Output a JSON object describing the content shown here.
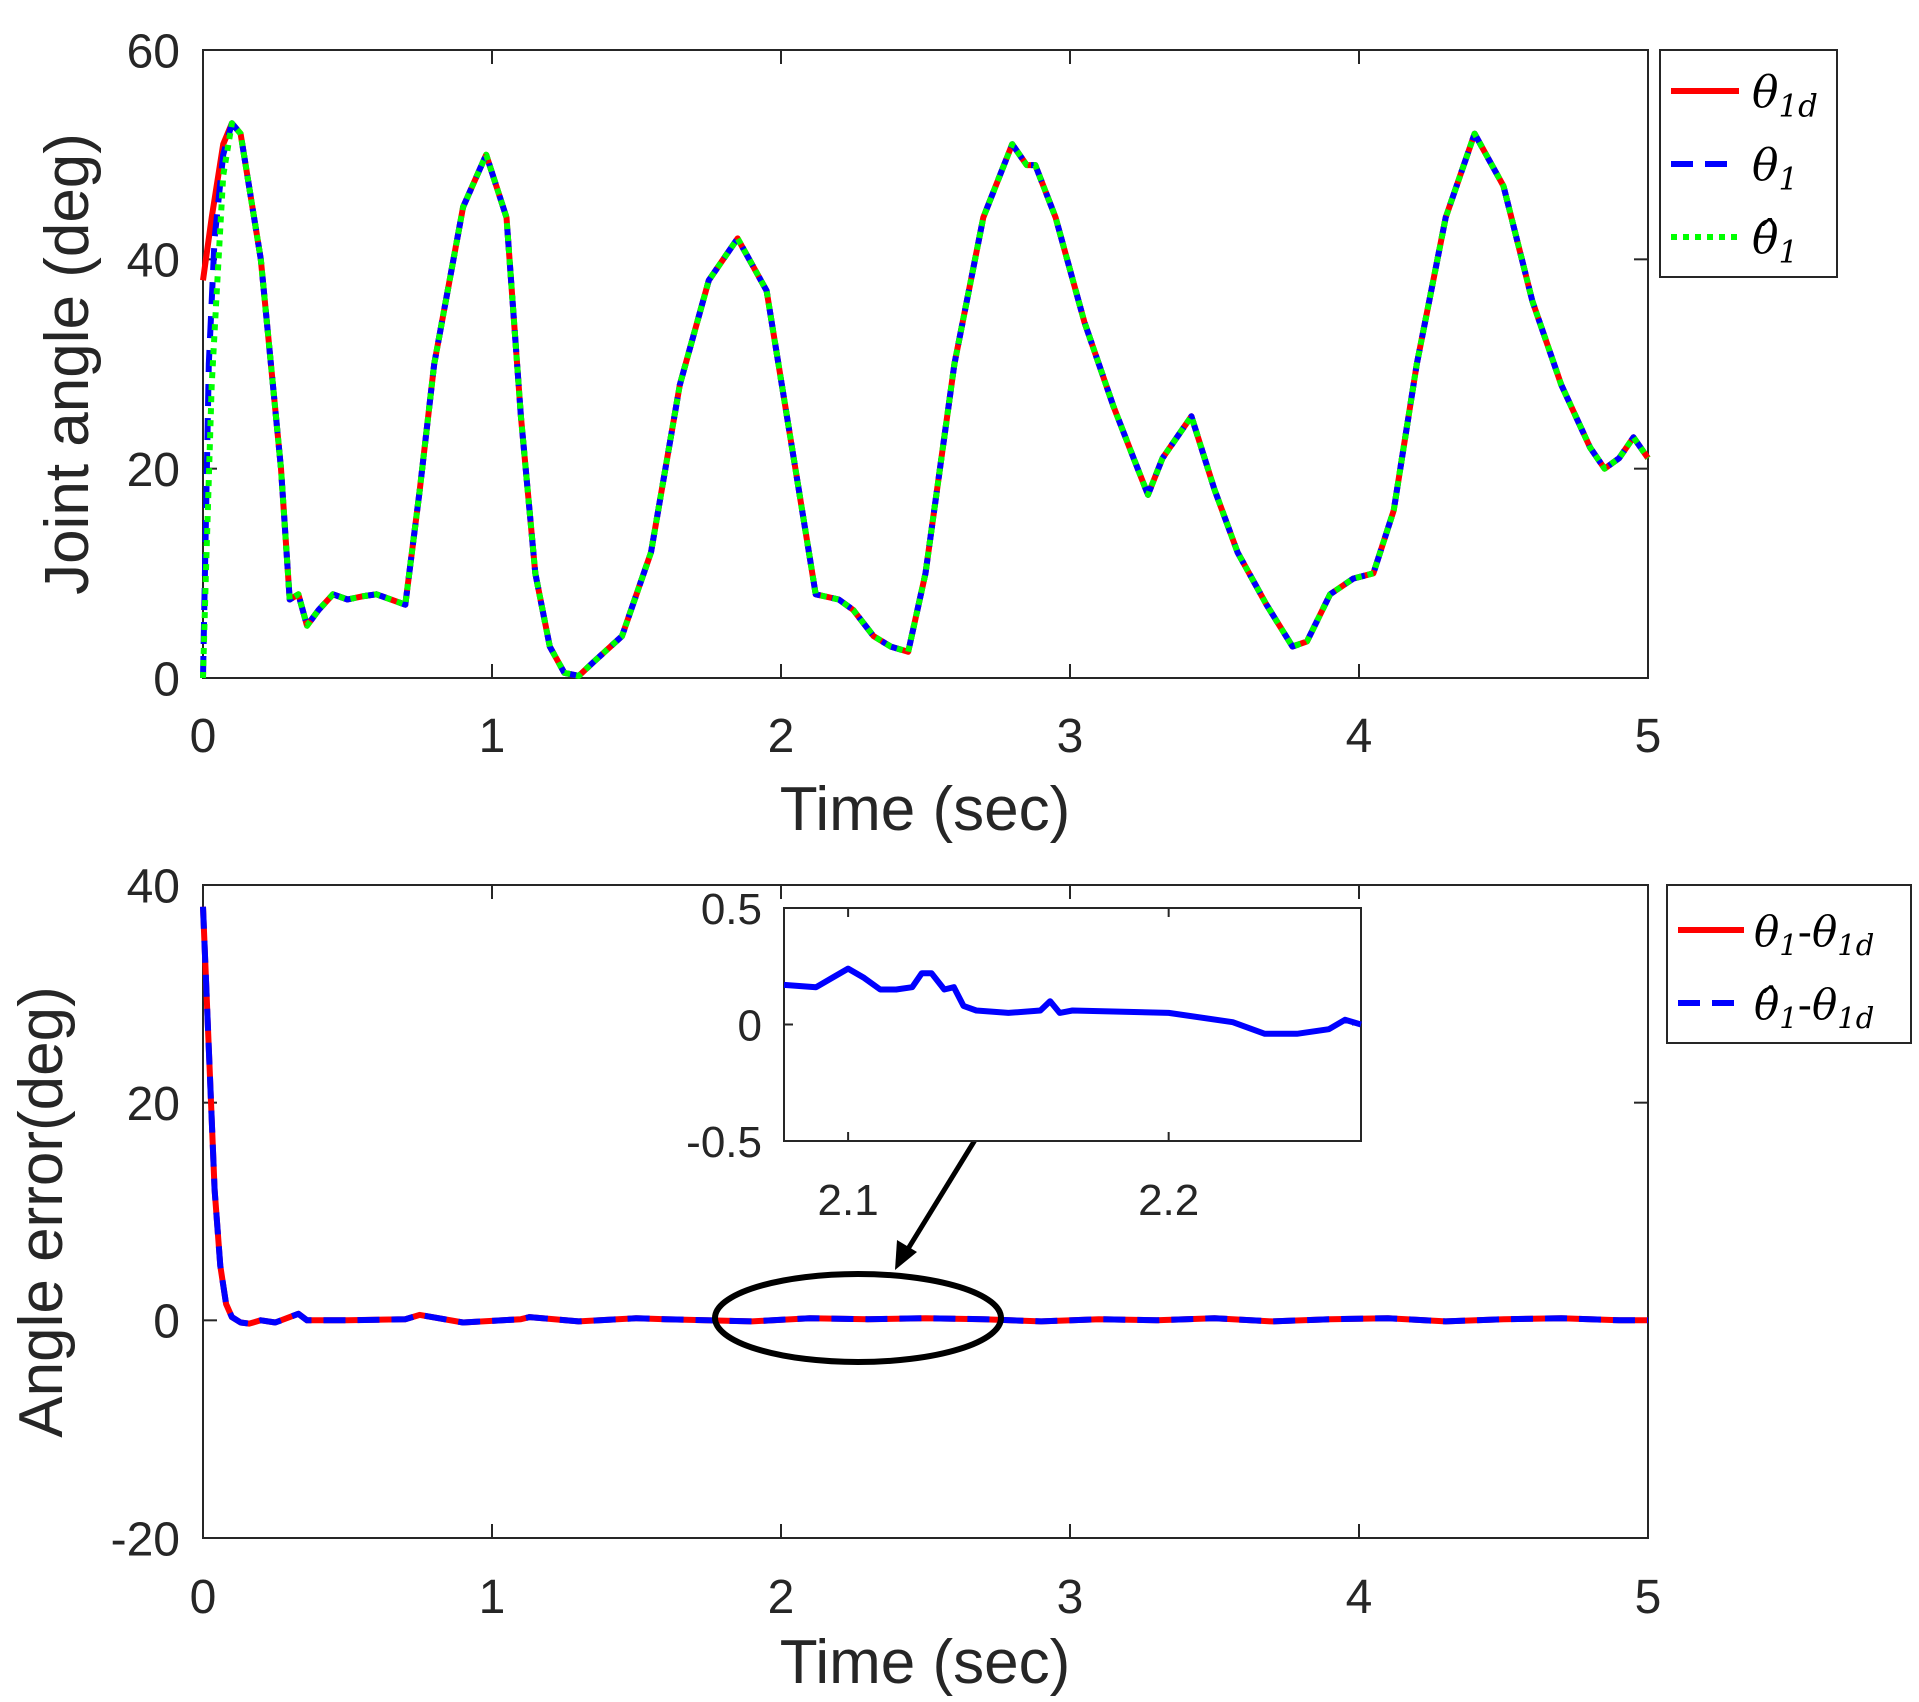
{
  "chart_data": [
    {
      "id": "top",
      "type": "line",
      "xlabel": "Time (sec)",
      "ylabel": "Joint angle (deg)",
      "xlim": [
        0,
        5
      ],
      "ylim": [
        0,
        60
      ],
      "xticks": [
        0,
        1,
        2,
        3,
        4,
        5
      ],
      "yticks": [
        0,
        20,
        40,
        60
      ],
      "xtick_labels": [
        "0",
        "1",
        "2",
        "3",
        "4",
        "5"
      ],
      "ytick_labels": [
        "0",
        "20",
        "40",
        "60"
      ],
      "grid": false,
      "legend_position": "outside-top-right",
      "series": [
        {
          "name": "θ1d",
          "legend_label": {
            "base": "θ",
            "sub": "1d"
          },
          "color": "#ff0000",
          "style": "solid",
          "x": [
            0,
            0.03,
            0.07,
            0.1,
            0.13,
            0.2,
            0.27,
            0.3,
            0.33,
            0.36,
            0.4,
            0.45,
            0.5,
            0.55,
            0.6,
            0.65,
            0.7,
            0.75,
            0.8,
            0.9,
            0.98,
            1.05,
            1.1,
            1.15,
            1.2,
            1.25,
            1.3,
            1.35,
            1.45,
            1.55,
            1.65,
            1.75,
            1.85,
            1.95,
            2.05,
            2.12,
            2.2,
            2.25,
            2.32,
            2.38,
            2.44,
            2.5,
            2.6,
            2.7,
            2.8,
            2.85,
            2.88,
            2.95,
            3.05,
            3.15,
            3.22,
            3.27,
            3.32,
            3.42,
            3.5,
            3.58,
            3.68,
            3.77,
            3.82,
            3.9,
            3.98,
            4.05,
            4.12,
            4.2,
            4.3,
            4.4,
            4.5,
            4.6,
            4.7,
            4.8,
            4.85,
            4.9,
            4.95,
            5
          ],
          "y": [
            38,
            44,
            51,
            53,
            52,
            40,
            20,
            7.5,
            8,
            5,
            6.5,
            8,
            7.5,
            7.8,
            8,
            7.5,
            7,
            18,
            30,
            45,
            50,
            44,
            25,
            10,
            3,
            0.5,
            0.2,
            1.5,
            4,
            12,
            28,
            38,
            42,
            37,
            20,
            8,
            7.5,
            6.5,
            4,
            3,
            2.5,
            10,
            30,
            44,
            51,
            49,
            49,
            44,
            34,
            26,
            21,
            17.5,
            21,
            25,
            18,
            12,
            7,
            3,
            3.5,
            8,
            9.5,
            10,
            16,
            30,
            44,
            52,
            47,
            36,
            28,
            22,
            20,
            21,
            23,
            21
          ]
        },
        {
          "name": "θ1",
          "legend_label": {
            "base": "θ",
            "sub": "1"
          },
          "color": "#0000ff",
          "style": "dashed",
          "x": [
            0,
            0.02,
            0.04,
            0.07,
            0.1,
            0.13,
            0.2,
            0.27,
            0.3,
            0.33,
            0.36,
            0.4,
            0.45,
            0.5,
            0.55,
            0.6,
            0.65,
            0.7,
            0.75,
            0.8,
            0.9,
            0.98,
            1.05,
            1.1,
            1.15,
            1.2,
            1.25,
            1.3,
            1.35,
            1.45,
            1.55,
            1.65,
            1.75,
            1.85,
            1.95,
            2.05,
            2.12,
            2.2,
            2.25,
            2.32,
            2.38,
            2.44,
            2.5,
            2.6,
            2.7,
            2.8,
            2.85,
            2.88,
            2.95,
            3.05,
            3.15,
            3.22,
            3.27,
            3.32,
            3.42,
            3.5,
            3.58,
            3.68,
            3.77,
            3.82,
            3.9,
            3.98,
            4.05,
            4.12,
            4.2,
            4.3,
            4.4,
            4.5,
            4.6,
            4.7,
            4.8,
            4.85,
            4.9,
            4.95,
            5
          ],
          "y": [
            0,
            30,
            42,
            50,
            53,
            52,
            40,
            20,
            7.5,
            8,
            5,
            6.5,
            8,
            7.5,
            7.8,
            8,
            7.5,
            7,
            18,
            30,
            45,
            50,
            44,
            25,
            10,
            3,
            0.5,
            0.2,
            1.5,
            4,
            12,
            28,
            38,
            42,
            37,
            20,
            8,
            7.5,
            6.5,
            4,
            3,
            2.5,
            10,
            30,
            44,
            51,
            49,
            49,
            44,
            34,
            26,
            21,
            17.5,
            21,
            25,
            18,
            12,
            7,
            3,
            3.5,
            8,
            9.5,
            10,
            16,
            30,
            44,
            52,
            47,
            36,
            28,
            22,
            20,
            21,
            23,
            21
          ]
        },
        {
          "name": "θ̂1",
          "legend_label": {
            "base": "θ̂",
            "sub": "1"
          },
          "color": "#00ff00",
          "style": "dotted",
          "x": [
            0,
            0.01,
            0.03,
            0.05,
            0.07,
            0.1,
            0.13,
            0.2,
            0.27,
            0.3,
            0.33,
            0.36,
            0.4,
            0.45,
            0.5,
            0.55,
            0.6,
            0.65,
            0.7,
            0.75,
            0.8,
            0.9,
            0.98,
            1.05,
            1.1,
            1.15,
            1.2,
            1.25,
            1.3,
            1.35,
            1.45,
            1.55,
            1.65,
            1.75,
            1.85,
            1.95,
            2.05,
            2.12,
            2.2,
            2.25,
            2.32,
            2.38,
            2.44,
            2.5,
            2.6,
            2.7,
            2.8,
            2.85,
            2.88,
            2.95,
            3.05,
            3.15,
            3.22,
            3.27,
            3.32,
            3.42,
            3.5,
            3.58,
            3.68,
            3.77,
            3.82,
            3.9,
            3.98,
            4.05,
            4.12,
            4.2,
            4.3,
            4.4,
            4.5,
            4.6,
            4.7,
            4.8,
            4.85,
            4.9,
            4.95,
            5
          ],
          "y": [
            0,
            10,
            28,
            38,
            48,
            53,
            52,
            40,
            20,
            7.5,
            8,
            5,
            6.5,
            8,
            7.5,
            7.8,
            8,
            7.5,
            7,
            18,
            30,
            45,
            50,
            44,
            25,
            10,
            3,
            0.5,
            0.2,
            1.5,
            4,
            12,
            28,
            38,
            42,
            37,
            20,
            8,
            7.5,
            6.5,
            4,
            3,
            2.5,
            10,
            30,
            44,
            51,
            49,
            49,
            44,
            34,
            26,
            21,
            17.5,
            21,
            25,
            18,
            12,
            7,
            3,
            3.5,
            8,
            9.5,
            10,
            16,
            30,
            44,
            52,
            47,
            36,
            28,
            22,
            20,
            21,
            23,
            21
          ]
        }
      ]
    },
    {
      "id": "bottom",
      "type": "line",
      "xlabel": "Time (sec)",
      "ylabel": "Angle error(deg)",
      "xlim": [
        0,
        5
      ],
      "ylim": [
        -20,
        40
      ],
      "xticks": [
        0,
        1,
        2,
        3,
        4,
        5
      ],
      "yticks": [
        -20,
        0,
        20,
        40
      ],
      "xtick_labels": [
        "0",
        "1",
        "2",
        "3",
        "4",
        "5"
      ],
      "ytick_labels": [
        "-20",
        "0",
        "20",
        "40"
      ],
      "grid": false,
      "legend_position": "outside-top-right",
      "annotation": "ellipse around t = 2.0–2.5 s with an arrow pointing to the zoomed inset",
      "series": [
        {
          "name": "θ1-θ1d",
          "legend_label": {
            "a_base": "θ",
            "a_sub": "1",
            "sep": "-",
            "b_base": "θ",
            "b_sub": "1d"
          },
          "color": "#ff0000",
          "style": "solid",
          "x": [
            0,
            0.02,
            0.04,
            0.06,
            0.08,
            0.1,
            0.13,
            0.16,
            0.2,
            0.25,
            0.3,
            0.33,
            0.36,
            0.5,
            0.7,
            0.75,
            0.9,
            1.1,
            1.13,
            1.3,
            1.5,
            1.6,
            1.9,
            2.1,
            2.3,
            2.5,
            2.7,
            2.9,
            3.1,
            3.3,
            3.5,
            3.7,
            3.9,
            4.1,
            4.3,
            4.5,
            4.7,
            4.9,
            5
          ],
          "y": [
            38,
            25,
            12,
            5,
            1.5,
            0.3,
            -0.2,
            -0.3,
            0,
            -0.2,
            0.3,
            0.6,
            0,
            0,
            0.1,
            0.5,
            -0.2,
            0.1,
            0.3,
            -0.1,
            0.2,
            0.1,
            -0.1,
            0.2,
            0.1,
            0.2,
            0.1,
            -0.1,
            0.1,
            0,
            0.2,
            -0.1,
            0.1,
            0.2,
            -0.1,
            0.1,
            0.2,
            0,
            0
          ]
        },
        {
          "name": "θ̂1-θ1d",
          "legend_label": {
            "a_base": "θ̂",
            "a_sub": "1",
            "sep": "-",
            "b_base": "θ",
            "b_sub": "1d"
          },
          "color": "#0000ff",
          "style": "dashed",
          "x": [
            0,
            0.02,
            0.04,
            0.06,
            0.08,
            0.1,
            0.13,
            0.16,
            0.2,
            0.25,
            0.3,
            0.33,
            0.36,
            0.5,
            0.7,
            0.75,
            0.9,
            1.1,
            1.13,
            1.3,
            1.5,
            1.6,
            1.9,
            2.1,
            2.3,
            2.5,
            2.7,
            2.9,
            3.1,
            3.3,
            3.5,
            3.7,
            3.9,
            4.1,
            4.3,
            4.5,
            4.7,
            4.9,
            5
          ],
          "y": [
            38,
            25,
            12,
            5,
            1.5,
            0.3,
            -0.2,
            -0.3,
            0,
            -0.2,
            0.3,
            0.6,
            0,
            0,
            0.1,
            0.5,
            -0.2,
            0.1,
            0.3,
            -0.1,
            0.2,
            0.1,
            -0.1,
            0.2,
            0.1,
            0.2,
            0.1,
            -0.1,
            0.1,
            0,
            0.2,
            -0.1,
            0.1,
            0.2,
            -0.1,
            0.1,
            0.2,
            0,
            0
          ]
        }
      ]
    },
    {
      "id": "inset",
      "type": "line",
      "xlim": [
        2.08,
        2.26
      ],
      "ylim": [
        -0.5,
        0.5
      ],
      "xticks": [
        2.1,
        2.2
      ],
      "yticks": [
        -0.5,
        0,
        0.5
      ],
      "xtick_labels": [
        "2.1",
        "2.2"
      ],
      "ytick_labels": [
        "-0.5",
        "0",
        "0.5"
      ],
      "grid": false,
      "series": [
        {
          "name": "θ̂1-θ1d",
          "color": "#0000ff",
          "style": "solid",
          "x": [
            2.08,
            2.09,
            2.095,
            2.1,
            2.105,
            2.11,
            2.115,
            2.12,
            2.123,
            2.126,
            2.13,
            2.133,
            2.136,
            2.14,
            2.15,
            2.16,
            2.163,
            2.166,
            2.17,
            2.2,
            2.22,
            2.23,
            2.24,
            2.25,
            2.255,
            2.26
          ],
          "y": [
            0.17,
            0.16,
            0.2,
            0.24,
            0.2,
            0.15,
            0.15,
            0.16,
            0.22,
            0.22,
            0.15,
            0.16,
            0.08,
            0.06,
            0.05,
            0.06,
            0.1,
            0.05,
            0.06,
            0.05,
            0.01,
            -0.04,
            -0.04,
            -0.02,
            0.02,
            0
          ]
        }
      ]
    }
  ]
}
